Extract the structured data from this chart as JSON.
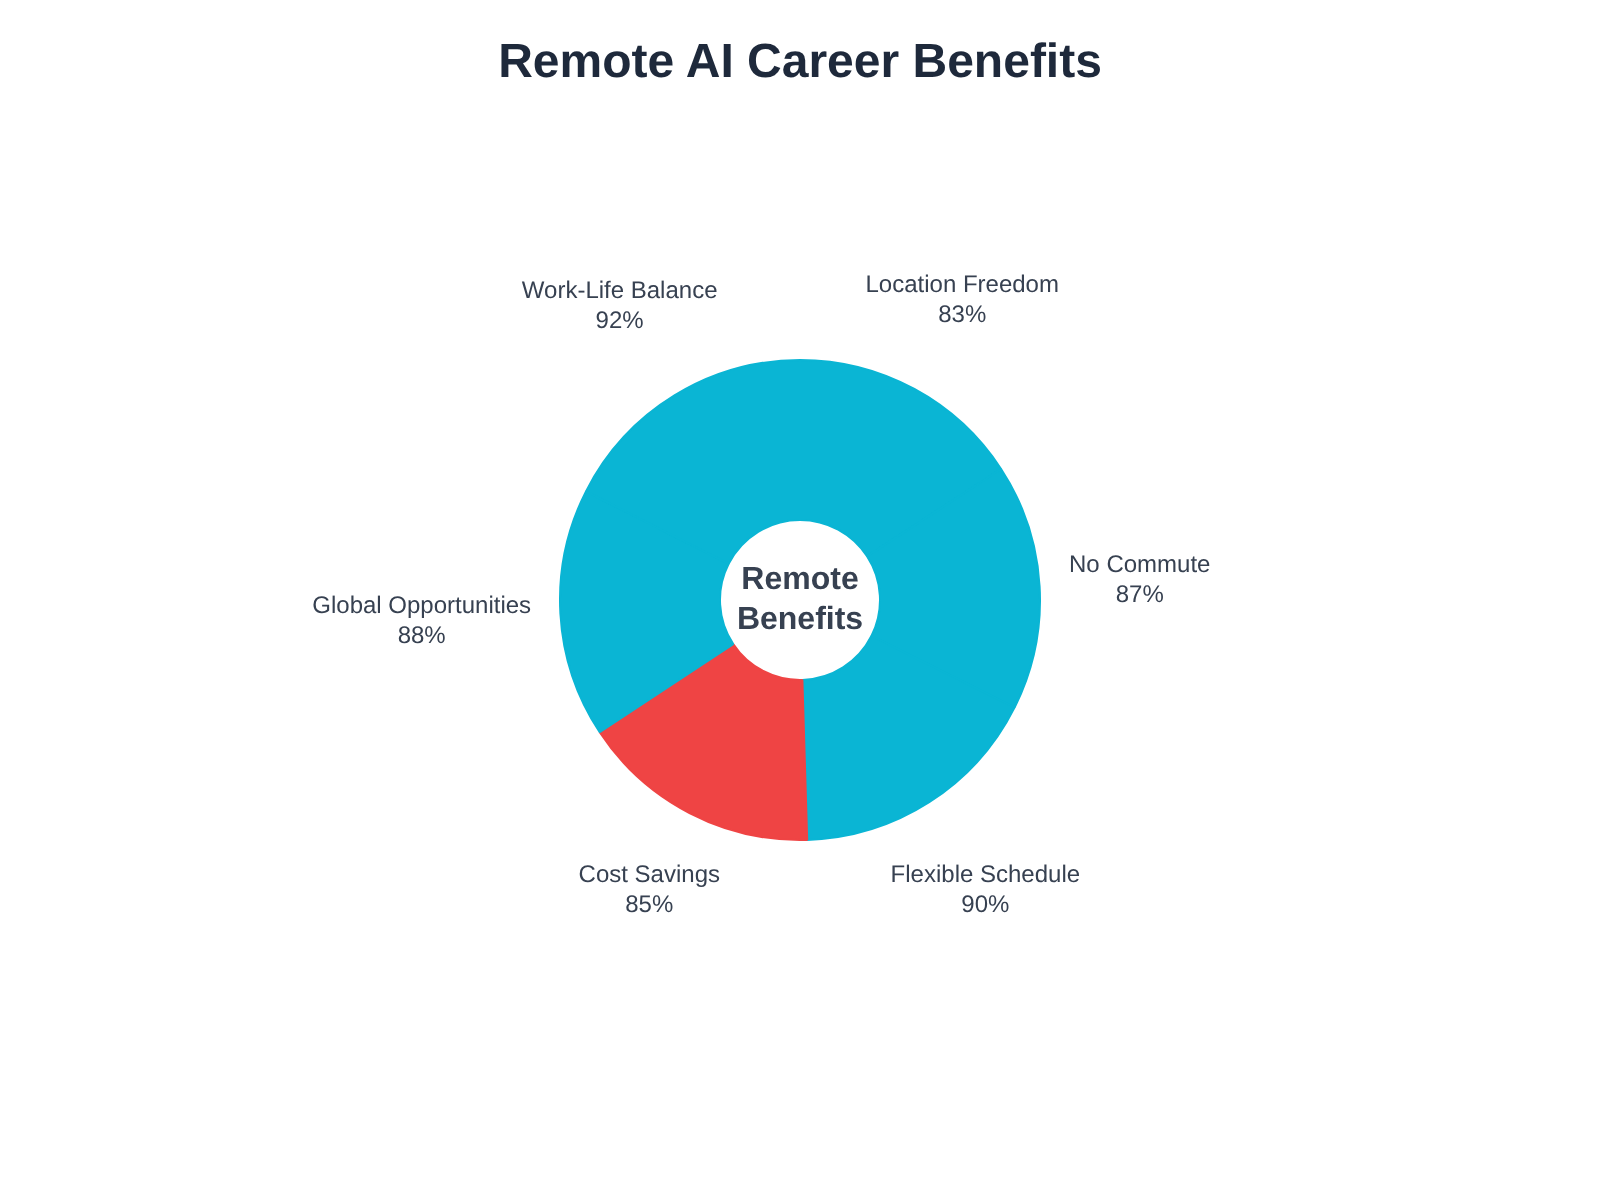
{
  "chart_data": {
    "type": "donut",
    "title": "Remote AI Career Benefits",
    "categories": [
      "Location Freedom",
      "No Commute",
      "Flexible Schedule",
      "Cost Savings",
      "Global Opportunities",
      "Work-Life Balance"
    ],
    "values": [
      83,
      87,
      90,
      85,
      88,
      92
    ],
    "value_labels": [
      "83%",
      "87%",
      "90%",
      "85%",
      "88%",
      "92%"
    ],
    "colors": [
      "#0ab5d4",
      "#0ab5d4",
      "#0ab5d4",
      "#ef4444",
      "#0ab5d4",
      "#0ab5d4"
    ],
    "annotations": [
      "Remote Benefits"
    ]
  }
}
